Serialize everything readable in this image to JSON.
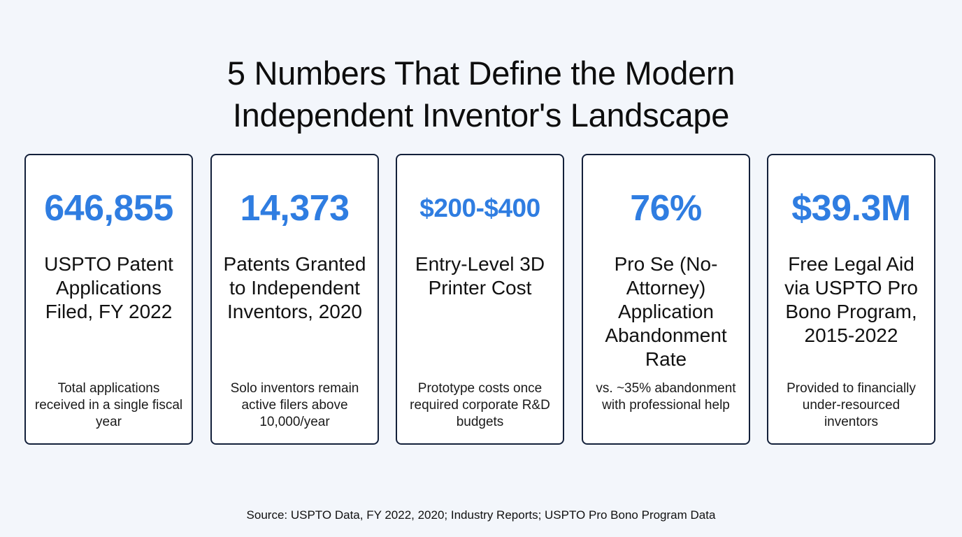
{
  "title": {
    "line1": "5 Numbers That Define the Modern",
    "line2": "Independent Inventor's Landscape"
  },
  "accent_color": "#2f7de1",
  "cards": [
    {
      "value": "646,855",
      "label": "USPTO Patent Applications Filed, FY 2022",
      "note": "Total applications received in a single fiscal year"
    },
    {
      "value": "14,373",
      "label": "Patents Granted to Independent Inventors, 2020",
      "note": "Solo inventors remain active filers above 10,000/year"
    },
    {
      "value": "$200-$400",
      "label": "Entry-Level 3D Printer Cost",
      "note": "Prototype costs once required corporate R&D budgets"
    },
    {
      "value": "76%",
      "label": "Pro Se (No-Attorney) Application Abandonment Rate",
      "note": "vs. ~35% abandonment with professional help"
    },
    {
      "value": "$39.3M",
      "label": "Free Legal Aid via USPTO Pro Bono Program, 2015-2022",
      "note": "Provided to financially under-resourced inventors"
    }
  ],
  "source": "Source: USPTO Data, FY 2022, 2020; Industry Reports; USPTO Pro Bono Program Data"
}
